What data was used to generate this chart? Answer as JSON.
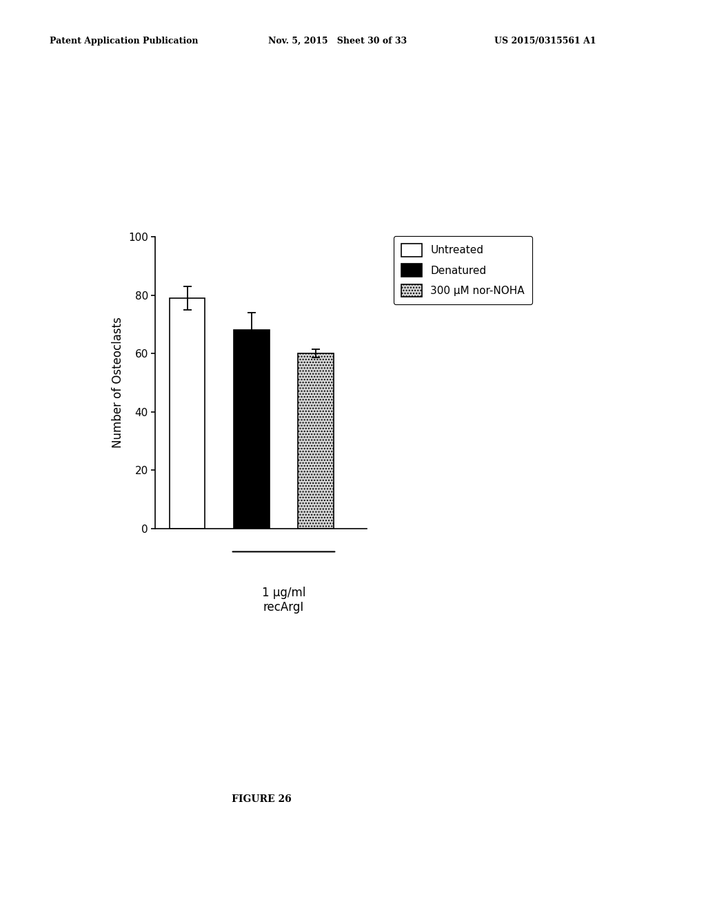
{
  "bars": [
    {
      "label": "Untreated",
      "value": 79,
      "error": 4,
      "color": "white",
      "edgecolor": "black",
      "hatch": null
    },
    {
      "label": "Denatured",
      "value": 68,
      "error": 6,
      "color": "black",
      "edgecolor": "black",
      "hatch": null
    },
    {
      "label": "300 μM nor-NOHA",
      "value": 60,
      "error": 1.5,
      "color": "#d3d3d3",
      "edgecolor": "black",
      "hatch": "...."
    }
  ],
  "xlabel_group": "1 μg/ml\nrecArgI",
  "ylabel": "Number of Osteoclasts",
  "ylim": [
    0,
    100
  ],
  "yticks": [
    0,
    20,
    40,
    60,
    80,
    100
  ],
  "figure_label": "FIGURE 26",
  "header_left": "Patent Application Publication",
  "header_mid": "Nov. 5, 2015   Sheet 30 of 33",
  "header_right": "US 2015/0315561 A1",
  "bar_width": 0.55,
  "bar_positions": [
    1.0,
    2.0,
    3.0
  ],
  "background_color": "white",
  "font_size_axis": 12,
  "font_size_tick": 11,
  "font_size_legend": 11,
  "font_size_header": 9,
  "font_size_figure_label": 10
}
